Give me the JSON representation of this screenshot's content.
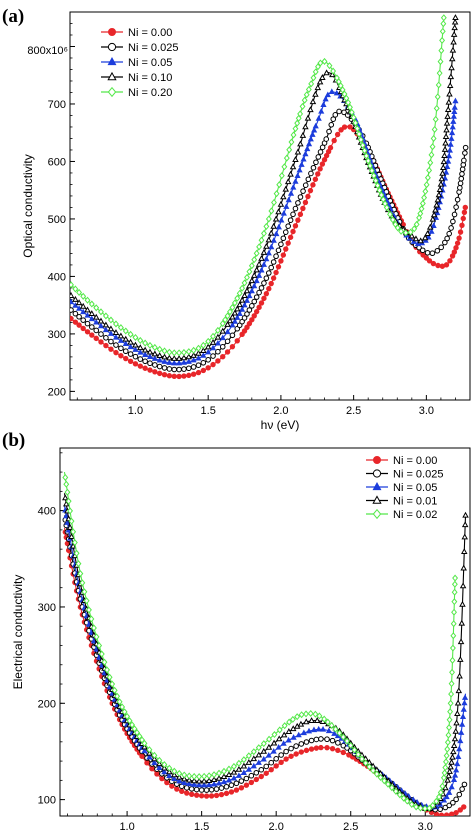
{
  "chart_data": [
    {
      "panel_label": "(a)",
      "type": "line",
      "xlabel": "hν (eV)",
      "ylabel": "Optical conductivity",
      "y_multiplier_label": "800x10⁶",
      "xlim": [
        0.55,
        3.3
      ],
      "ylim": [
        185,
        860
      ],
      "x_ticks": [
        1.0,
        1.5,
        2.0,
        2.5,
        3.0
      ],
      "x_tick_labels": [
        "1.0",
        "1.5",
        "2.0",
        "2.5",
        "3.0"
      ],
      "y_ticks": [
        200,
        300,
        400,
        500,
        600,
        700
      ],
      "y_tick_labels": [
        "200",
        "300",
        "400",
        "500",
        "600",
        "700"
      ],
      "legend_position": "top-left",
      "series": [
        {
          "name": "Ni = 0.00",
          "color": "#e8262a",
          "marker": "filled-circle",
          "x": [
            0.55,
            0.7,
            0.9,
            1.1,
            1.3,
            1.5,
            1.7,
            1.9,
            2.1,
            2.3,
            2.45,
            2.6,
            2.75,
            2.9,
            3.0,
            3.08,
            3.15,
            3.22,
            3.27
          ],
          "y": [
            328,
            298,
            262,
            237,
            226,
            241,
            288,
            370,
            488,
            603,
            661,
            618,
            538,
            462,
            432,
            419,
            423,
            462,
            523
          ]
        },
        {
          "name": "Ni = 0.025",
          "color": "#000000",
          "marker": "open-circle",
          "x": [
            0.55,
            0.7,
            0.9,
            1.1,
            1.3,
            1.5,
            1.7,
            1.9,
            2.1,
            2.3,
            2.4,
            2.55,
            2.7,
            2.85,
            2.95,
            3.05,
            3.15,
            3.22,
            3.27
          ],
          "y": [
            343,
            312,
            275,
            249,
            238,
            255,
            309,
            397,
            518,
            632,
            687,
            650,
            562,
            478,
            450,
            441,
            470,
            540,
            624
          ]
        },
        {
          "name": "Ni = 0.05",
          "color": "#1c3ddc",
          "marker": "filled-triangle",
          "x": [
            0.55,
            0.7,
            0.9,
            1.1,
            1.3,
            1.5,
            1.7,
            1.9,
            2.1,
            2.25,
            2.35,
            2.5,
            2.65,
            2.8,
            2.9,
            2.97,
            3.05,
            3.15,
            3.2
          ],
          "y": [
            357,
            326,
            288,
            260,
            249,
            268,
            328,
            430,
            565,
            668,
            721,
            679,
            578,
            494,
            463,
            458,
            488,
            600,
            705
          ]
        },
        {
          "name": "Ni = 0.10",
          "color": "#000000",
          "marker": "open-triangle",
          "x": [
            0.55,
            0.7,
            0.9,
            1.1,
            1.3,
            1.5,
            1.7,
            1.9,
            2.1,
            2.3,
            2.45,
            2.6,
            2.75,
            2.9,
            3.0,
            3.1,
            3.15,
            3.2
          ],
          "y": [
            368,
            335,
            296,
            268,
            257,
            277,
            343,
            452,
            603,
            751,
            700,
            598,
            510,
            470,
            470,
            560,
            690,
            850
          ]
        },
        {
          "name": "Ni = 0.20",
          "color": "#55e84a",
          "marker": "open-diamond",
          "x": [
            0.55,
            0.7,
            0.9,
            1.1,
            1.3,
            1.5,
            1.7,
            1.9,
            2.1,
            2.2,
            2.3,
            2.45,
            2.6,
            2.75,
            2.85,
            2.95,
            3.05,
            3.12
          ],
          "y": [
            387,
            352,
            311,
            280,
            267,
            287,
            362,
            487,
            657,
            730,
            774,
            710,
            601,
            508,
            476,
            502,
            640,
            850
          ]
        }
      ]
    },
    {
      "panel_label": "(b)",
      "type": "line",
      "xlabel": "hν (eV)",
      "ylabel": "Electrical conductivity",
      "xlim": [
        0.55,
        3.3
      ],
      "ylim": [
        83,
        465
      ],
      "x_ticks": [
        1.0,
        1.5,
        2.0,
        2.5,
        3.0
      ],
      "x_tick_labels": [
        "1.0",
        "1.5",
        "2.0",
        "2.5",
        "3.0"
      ],
      "y_ticks": [
        100,
        200,
        300,
        400
      ],
      "y_tick_labels": [
        "100",
        "200",
        "300",
        "400"
      ],
      "legend_position": "top-right",
      "series": [
        {
          "name": "Ni = 0.00",
          "color": "#e8262a",
          "marker": "filled-circle",
          "x": [
            0.58,
            0.7,
            0.9,
            1.1,
            1.3,
            1.5,
            1.7,
            1.9,
            2.1,
            2.3,
            2.45,
            2.6,
            2.75,
            2.9,
            3.0,
            3.1,
            3.2,
            3.27
          ],
          "y": [
            382,
            292,
            200,
            145,
            114,
            104,
            108,
            124,
            145,
            154,
            149,
            136,
            119,
            100,
            90,
            84,
            86,
            94
          ]
        },
        {
          "name": "Ni = 0.025",
          "color": "#000000",
          "marker": "open-circle",
          "x": [
            0.58,
            0.7,
            0.9,
            1.1,
            1.3,
            1.5,
            1.7,
            1.9,
            2.1,
            2.3,
            2.45,
            2.6,
            2.75,
            2.9,
            3.0,
            3.1,
            3.2,
            3.27
          ],
          "y": [
            395,
            300,
            205,
            150,
            119,
            110,
            115,
            131,
            153,
            163,
            156,
            138,
            120,
            101,
            92,
            90,
            99,
            118
          ]
        },
        {
          "name": "Ni = 0.05",
          "color": "#1c3ddc",
          "marker": "filled-triangle",
          "x": [
            0.58,
            0.7,
            0.9,
            1.1,
            1.3,
            1.5,
            1.7,
            1.9,
            2.1,
            2.3,
            2.45,
            2.6,
            2.75,
            2.9,
            3.0,
            3.1,
            3.2,
            3.27
          ],
          "y": [
            405,
            307,
            210,
            154,
            123,
            115,
            121,
            140,
            163,
            173,
            162,
            140,
            121,
            102,
            93,
            95,
            125,
            210
          ]
        },
        {
          "name": "Ni = 0.01",
          "color": "#000000",
          "marker": "open-triangle",
          "x": [
            0.58,
            0.7,
            0.9,
            1.1,
            1.3,
            1.5,
            1.7,
            1.9,
            2.1,
            2.25,
            2.4,
            2.55,
            2.7,
            2.85,
            2.95,
            3.05,
            3.15,
            3.22,
            3.27
          ],
          "y": [
            418,
            315,
            214,
            158,
            127,
            119,
            127,
            148,
            172,
            182,
            174,
            150,
            127,
            105,
            94,
            92,
            120,
            200,
            395
          ]
        },
        {
          "name": "Ni = 0.02",
          "color": "#55e84a",
          "marker": "open-diamond",
          "x": [
            0.58,
            0.7,
            0.9,
            1.1,
            1.3,
            1.5,
            1.7,
            1.9,
            2.1,
            2.2,
            2.3,
            2.45,
            2.6,
            2.75,
            2.9,
            2.98,
            3.05,
            3.12,
            3.17,
            3.2
          ],
          "y": [
            440,
            325,
            220,
            162,
            131,
            124,
            133,
            156,
            182,
            189,
            186,
            165,
            138,
            116,
            96,
            91,
            94,
            118,
            200,
            330
          ]
        }
      ]
    }
  ]
}
